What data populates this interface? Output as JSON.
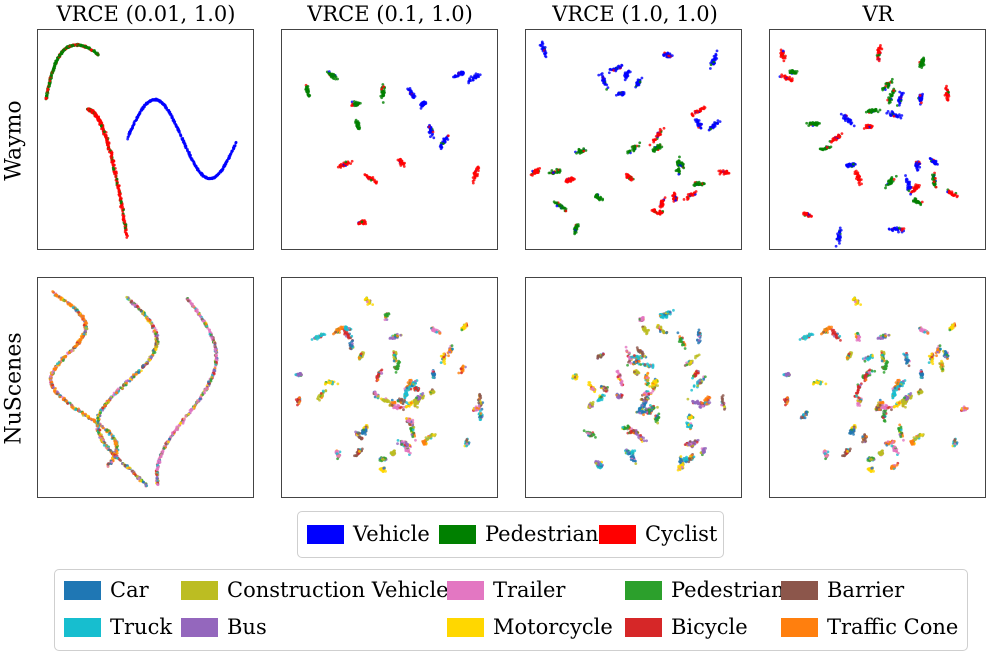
{
  "chart_data": {
    "type": "scatter",
    "columns": [
      "VRCE (0.01, 1.0)",
      "VRCE (0.1, 1.0)",
      "VRCE (1.0, 1.0)",
      "VR"
    ],
    "rows": [
      "Waymo",
      "NuScenes"
    ],
    "waymo_legend": [
      {
        "name": "Vehicle",
        "color": "#0000ff"
      },
      {
        "name": "Pedestrian",
        "color": "#008000"
      },
      {
        "name": "Cyclist",
        "color": "#ff0000"
      }
    ],
    "nuscenes_legend": [
      {
        "name": "Car",
        "color": "#1f77b4"
      },
      {
        "name": "Truck",
        "color": "#17becf"
      },
      {
        "name": "Construction Vehicle",
        "color": "#bcbd22"
      },
      {
        "name": "Bus",
        "color": "#9467bd"
      },
      {
        "name": "Trailer",
        "color": "#e377c2"
      },
      {
        "name": "Motorcycle",
        "color": "#ffd700"
      },
      {
        "name": "Pedestrian",
        "color": "#2ca02c"
      },
      {
        "name": "Bicycle",
        "color": "#d62728"
      },
      {
        "name": "Barrier",
        "color": "#8c564b"
      },
      {
        "name": "Traffic Cone",
        "color": "#ff7f0e"
      }
    ],
    "axes": "hidden",
    "grid": false,
    "legend_placement": "bottom"
  }
}
